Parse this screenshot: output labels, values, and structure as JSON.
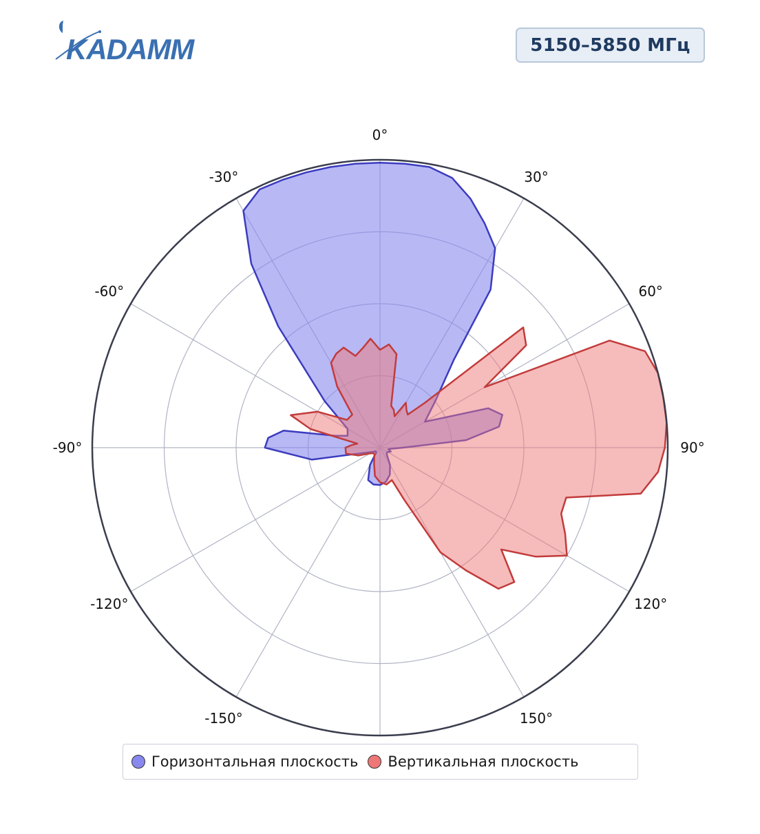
{
  "brand": {
    "logo_text": "KADAMM",
    "logo_color": "#3a70b2"
  },
  "header": {
    "band_label": "5150–5850 МГц"
  },
  "legend": {
    "items": [
      {
        "label": "Горизонтальная плоскость",
        "color": "#8888ee"
      },
      {
        "label": "Вертикальная плоскость",
        "color": "#ee7777"
      }
    ]
  },
  "chart_data": {
    "type": "polar-area",
    "title": "",
    "angular_axis": {
      "direction": "clockwise",
      "zero_at": "top",
      "tick_labels": [
        "0°",
        "30°",
        "60°",
        "90°",
        "120°",
        "150°",
        "-150°",
        "-120°",
        "-90°",
        "-60°",
        "-30°"
      ],
      "tick_angles": [
        0,
        30,
        60,
        90,
        120,
        150,
        -150,
        -120,
        -90,
        -60,
        -30
      ]
    },
    "radial_axis": {
      "range": [
        0,
        1
      ],
      "gridlines": [
        0.25,
        0.5,
        0.75,
        1.0
      ],
      "tick_labels_shown": false
    },
    "grid": true,
    "legend_placement": "bottom",
    "series": [
      {
        "name": "Горизонтальная плоскость",
        "line_color": "#3b3bbf",
        "fill_color": "#8888ee",
        "angles": [
          -180,
          -170,
          -160,
          -150,
          -140,
          -130,
          -120,
          -110,
          -100,
          -90,
          -85,
          -80,
          -75,
          -70,
          -60,
          -50,
          -40,
          -35,
          -30,
          -25,
          -20,
          -15,
          -10,
          -5,
          0,
          5,
          10,
          15,
          20,
          25,
          30,
          35,
          40,
          50,
          60,
          70,
          75,
          80,
          85,
          90,
          95,
          100,
          110,
          120,
          130,
          140,
          150,
          160,
          170,
          180
        ],
        "values": [
          0.13,
          0.13,
          0.12,
          0.07,
          0.02,
          0.02,
          0.03,
          0.05,
          0.24,
          0.4,
          0.39,
          0.34,
          0.16,
          0.12,
          0.13,
          0.25,
          0.55,
          0.78,
          0.95,
          0.99,
          0.99,
          0.99,
          0.99,
          0.99,
          0.99,
          0.99,
          0.99,
          0.97,
          0.92,
          0.86,
          0.8,
          0.67,
          0.4,
          0.25,
          0.18,
          0.4,
          0.44,
          0.42,
          0.3,
          0.08,
          0.04,
          0.03,
          0.04,
          0.03,
          0.03,
          0.04,
          0.07,
          0.1,
          0.12,
          0.13
        ]
      },
      {
        "name": "Вертикальная плоскость",
        "line_color": "#c23b3b",
        "fill_color": "#ee7777",
        "angles": [
          -180,
          -170,
          -160,
          -150,
          -140,
          -130,
          -120,
          -110,
          -100,
          -90,
          -85,
          -80,
          -75,
          -70,
          -60,
          -50,
          -40,
          -35,
          -30,
          -25,
          -20,
          -15,
          -10,
          -5,
          0,
          5,
          10,
          15,
          20,
          25,
          30,
          35,
          40,
          45,
          50,
          55,
          60,
          65,
          70,
          75,
          80,
          85,
          90,
          95,
          100,
          105,
          110,
          115,
          120,
          125,
          130,
          135,
          140,
          145,
          150,
          155,
          160,
          170,
          180
        ],
        "values": [
          0.12,
          0.1,
          0.06,
          0.04,
          0.03,
          0.03,
          0.04,
          0.08,
          0.12,
          0.12,
          0.1,
          0.08,
          0.25,
          0.33,
          0.25,
          0.15,
          0.15,
          0.26,
          0.34,
          0.36,
          0.37,
          0.33,
          0.35,
          0.38,
          0.34,
          0.36,
          0.33,
          0.15,
          0.14,
          0.12,
          0.18,
          0.16,
          0.15,
          0.22,
          0.65,
          0.62,
          0.42,
          0.88,
          0.98,
          1.0,
          1.0,
          1.0,
          0.99,
          0.97,
          0.92,
          0.67,
          0.67,
          0.71,
          0.75,
          0.66,
          0.55,
          0.66,
          0.64,
          0.52,
          0.42,
          0.2,
          0.12,
          0.13,
          0.12
        ]
      }
    ]
  }
}
